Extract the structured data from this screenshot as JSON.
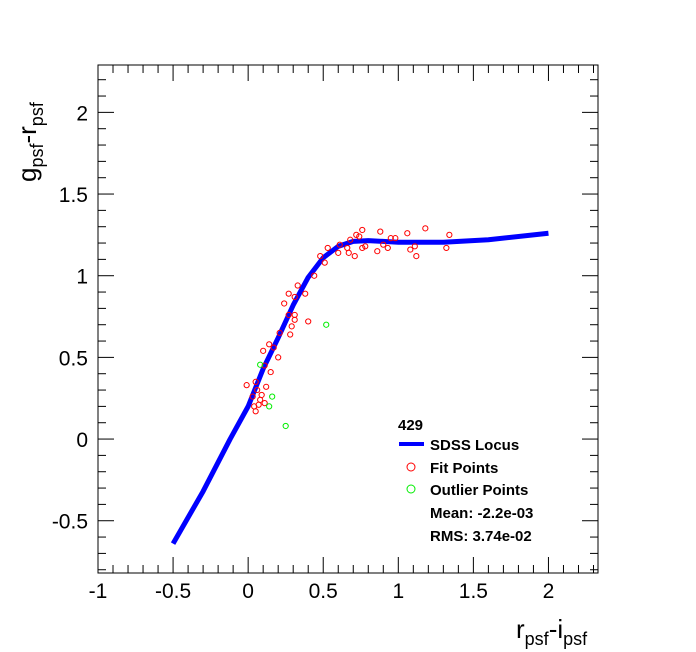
{
  "chart_data": {
    "type": "scatter",
    "title": "",
    "xlabel": {
      "main": "r",
      "sub1": "psf",
      "mid": "-i",
      "sub2": "psf"
    },
    "ylabel": {
      "main": "g",
      "sub1": "psf",
      "mid": "-r",
      "sub2": "psf"
    },
    "xlim": [
      -1,
      2.33
    ],
    "ylim": [
      -0.82,
      2.29
    ],
    "xticks": [
      -1,
      -0.5,
      0,
      0.5,
      1,
      1.5,
      2
    ],
    "xtick_labels": [
      "-1",
      "-0.5",
      "0",
      "0.5",
      "1",
      "1.5",
      "2"
    ],
    "yticks": [
      -0.5,
      0,
      0.5,
      1,
      1.5,
      2
    ],
    "ytick_labels": [
      "-0.5",
      "0",
      "0.5",
      "1",
      "1.5",
      "2"
    ],
    "grid": false,
    "legend": {
      "placement": "bottom-right",
      "header": "429",
      "entries": [
        "SDSS Locus",
        "Fit Points",
        "Outlier Points"
      ],
      "mean": "Mean: -2.2e-03",
      "rms": "RMS: 3.74e-02"
    },
    "series": [
      {
        "name": "SDSS Locus",
        "type": "line",
        "color": "#0000ff",
        "points": [
          [
            -0.5,
            -0.64
          ],
          [
            -0.3,
            -0.32
          ],
          [
            -0.12,
            0
          ],
          [
            0,
            0.2
          ],
          [
            0.1,
            0.43
          ],
          [
            0.2,
            0.62
          ],
          [
            0.3,
            0.82
          ],
          [
            0.4,
            0.99
          ],
          [
            0.5,
            1.11
          ],
          [
            0.6,
            1.18
          ],
          [
            0.7,
            1.21
          ],
          [
            0.8,
            1.215
          ],
          [
            1.0,
            1.205
          ],
          [
            1.3,
            1.205
          ],
          [
            1.6,
            1.22
          ],
          [
            2.0,
            1.26
          ]
        ]
      },
      {
        "name": "Fit Points",
        "type": "scatter",
        "color": "#ff0000",
        "points": [
          [
            -0.01,
            0.33
          ],
          [
            0.03,
            0.26
          ],
          [
            0.05,
            0.35
          ],
          [
            0.05,
            0.17
          ],
          [
            0.07,
            0.21
          ],
          [
            0.09,
            0.27
          ],
          [
            0.11,
            0.22
          ],
          [
            0.11,
            0.45
          ],
          [
            0.1,
            0.54
          ],
          [
            0.14,
            0.58
          ],
          [
            0.17,
            0.56
          ],
          [
            0.2,
            0.5
          ],
          [
            0.15,
            0.41
          ],
          [
            0.21,
            0.65
          ],
          [
            0.28,
            0.64
          ],
          [
            0.29,
            0.69
          ],
          [
            0.31,
            0.76
          ],
          [
            0.31,
            0.73
          ],
          [
            0.27,
            0.76
          ],
          [
            0.24,
            0.83
          ],
          [
            0.27,
            0.89
          ],
          [
            0.31,
            0.87
          ],
          [
            0.33,
            0.94
          ],
          [
            0.38,
            0.89
          ],
          [
            0.4,
            0.72
          ],
          [
            0.44,
            1.0
          ],
          [
            0.48,
            1.12
          ],
          [
            0.51,
            1.08
          ],
          [
            0.53,
            1.17
          ],
          [
            0.6,
            1.14
          ],
          [
            0.61,
            1.19
          ],
          [
            0.66,
            1.17
          ],
          [
            0.67,
            1.14
          ],
          [
            0.71,
            1.12
          ],
          [
            0.68,
            1.22
          ],
          [
            0.72,
            1.25
          ],
          [
            0.74,
            1.24
          ],
          [
            0.76,
            1.28
          ],
          [
            0.76,
            1.17
          ],
          [
            0.78,
            1.18
          ],
          [
            0.86,
            1.15
          ],
          [
            0.88,
            1.27
          ],
          [
            0.9,
            1.19
          ],
          [
            0.93,
            1.17
          ],
          [
            0.95,
            1.23
          ],
          [
            0.98,
            1.23
          ],
          [
            1.06,
            1.26
          ],
          [
            1.08,
            1.16
          ],
          [
            1.11,
            1.18
          ],
          [
            1.12,
            1.12
          ],
          [
            1.18,
            1.29
          ],
          [
            1.32,
            1.17
          ],
          [
            1.34,
            1.25
          ],
          [
            0.06,
            0.3
          ],
          [
            0.08,
            0.24
          ],
          [
            0.12,
            0.32
          ],
          [
            0.04,
            0.2
          ]
        ]
      },
      {
        "name": "Outlier Points",
        "type": "scatter",
        "color": "#00ff00",
        "points": [
          [
            0.52,
            0.7
          ],
          [
            0.08,
            0.455
          ],
          [
            0.16,
            0.26
          ],
          [
            0.14,
            0.2
          ],
          [
            0.25,
            0.08
          ]
        ]
      }
    ]
  }
}
